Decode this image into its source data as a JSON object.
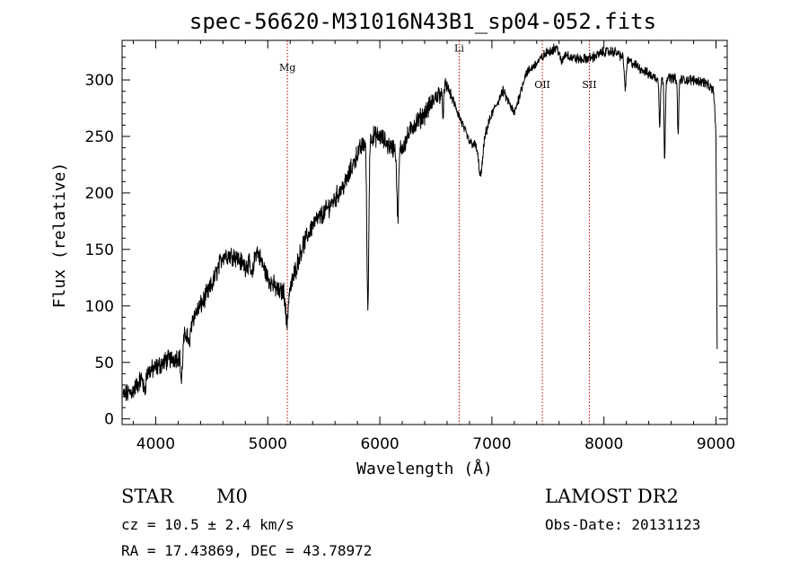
{
  "chart_data": {
    "type": "line",
    "title": "spec-56620-M31016N43B1_sp04-052.fits",
    "xlabel": "Wavelength (Å)",
    "ylabel": "Flux (relative)",
    "xlim": [
      3700,
      9100
    ],
    "ylim": [
      -5,
      335
    ],
    "xticks": [
      4000,
      5000,
      6000,
      7000,
      8000,
      9000
    ],
    "yticks": [
      0,
      50,
      100,
      150,
      200,
      250,
      300
    ],
    "spectrum_knots": [
      [
        3700,
        20
      ],
      [
        3800,
        25
      ],
      [
        3900,
        40
      ],
      [
        4000,
        45
      ],
      [
        4100,
        52
      ],
      [
        4200,
        55
      ],
      [
        4300,
        85
      ],
      [
        4400,
        100
      ],
      [
        4500,
        118
      ],
      [
        4600,
        145
      ],
      [
        4700,
        145
      ],
      [
        4800,
        135
      ],
      [
        4900,
        150
      ],
      [
        5000,
        125
      ],
      [
        5100,
        112
      ],
      [
        5200,
        115
      ],
      [
        5300,
        150
      ],
      [
        5400,
        172
      ],
      [
        5500,
        182
      ],
      [
        5600,
        195
      ],
      [
        5700,
        210
      ],
      [
        5800,
        235
      ],
      [
        5900,
        250
      ],
      [
        6000,
        250
      ],
      [
        6100,
        240
      ],
      [
        6200,
        240
      ],
      [
        6300,
        260
      ],
      [
        6400,
        270
      ],
      [
        6500,
        285
      ],
      [
        6600,
        295
      ],
      [
        6700,
        270
      ],
      [
        6800,
        245
      ],
      [
        6900,
        240
      ],
      [
        7000,
        270
      ],
      [
        7100,
        290
      ],
      [
        7200,
        270
      ],
      [
        7300,
        305
      ],
      [
        7400,
        315
      ],
      [
        7500,
        325
      ],
      [
        7600,
        330
      ],
      [
        7700,
        320
      ],
      [
        7800,
        318
      ],
      [
        7900,
        320
      ],
      [
        8000,
        325
      ],
      [
        8100,
        325
      ],
      [
        8200,
        318
      ],
      [
        8300,
        312
      ],
      [
        8400,
        305
      ],
      [
        8500,
        300
      ],
      [
        8600,
        302
      ],
      [
        8700,
        300
      ],
      [
        8800,
        300
      ],
      [
        8900,
        298
      ],
      [
        8980,
        290
      ],
      [
        9000,
        250
      ],
      [
        9010,
        60
      ]
    ],
    "absorption_features": [
      {
        "center": 3900,
        "depth": 15,
        "width": 15
      },
      {
        "center": 4230,
        "depth": 30,
        "width": 12
      },
      {
        "center": 4300,
        "depth": 20,
        "width": 15
      },
      {
        "center": 4860,
        "depth": 18,
        "width": 20
      },
      {
        "center": 5170,
        "depth": 30,
        "width": 15
      },
      {
        "center": 5893,
        "depth": 150,
        "width": 12
      },
      {
        "center": 6160,
        "depth": 60,
        "width": 12
      },
      {
        "center": 6563,
        "depth": 20,
        "width": 10
      },
      {
        "center": 6900,
        "depth": 25,
        "width": 25
      },
      {
        "center": 7620,
        "depth": 12,
        "width": 25
      },
      {
        "center": 8190,
        "depth": 25,
        "width": 12
      },
      {
        "center": 8498,
        "depth": 40,
        "width": 8
      },
      {
        "center": 8542,
        "depth": 70,
        "width": 8
      },
      {
        "center": 8662,
        "depth": 50,
        "width": 8
      }
    ],
    "reference_lines": [
      {
        "label": "Mg",
        "wavelength": 5175,
        "label_y": 308
      },
      {
        "label": "Li",
        "wavelength": 6708,
        "label_y": 325
      },
      {
        "label": "OII",
        "wavelength": 7450,
        "label_y": 293
      },
      {
        "label": "SII",
        "wavelength": 7870,
        "label_y": 293
      }
    ],
    "reference_line_color": "#c00000",
    "spectrum_color": "#000000"
  },
  "footer": {
    "class_label": "STAR",
    "subclass_label": "M0",
    "survey_label": "LAMOST DR2",
    "cz_text": "cz = 10.5 ± 2.4 km/s",
    "obs_date_text": "Obs-Date: 20131123",
    "radec_text": "RA =  17.43869, DEC =  43.78972"
  }
}
